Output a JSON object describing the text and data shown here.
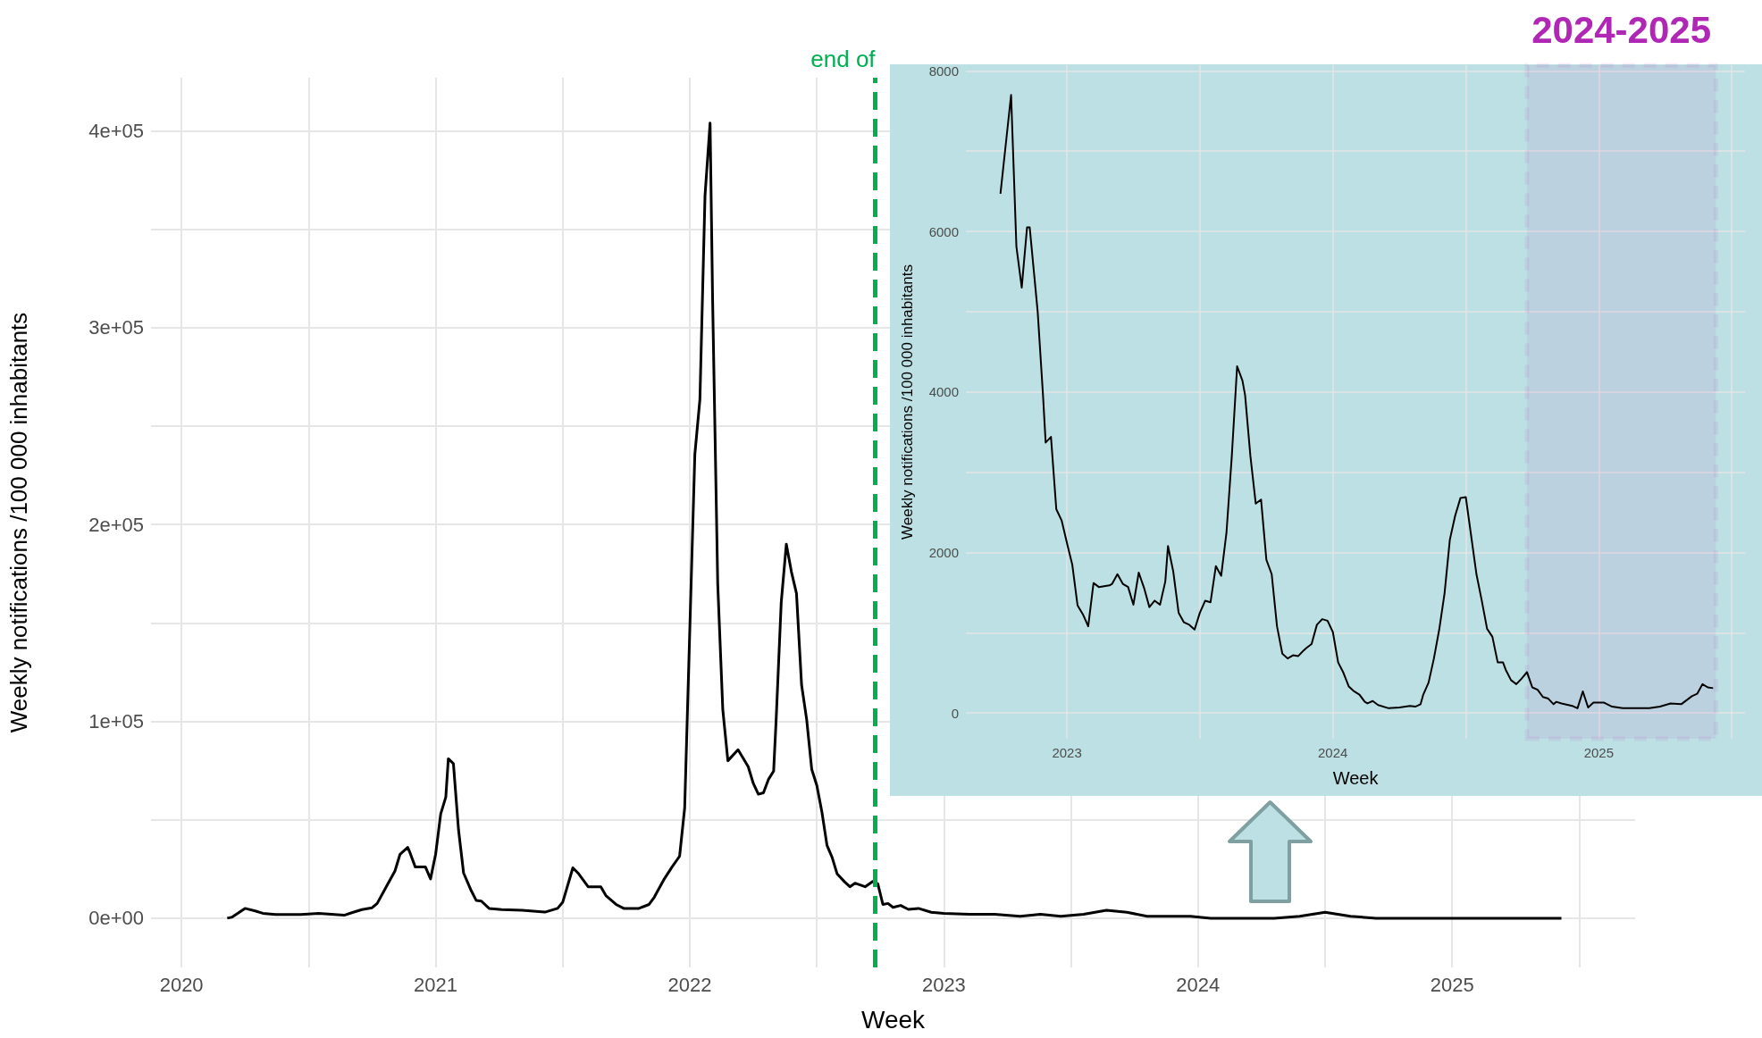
{
  "chart_data": [
    {
      "type": "line",
      "xlabel": "Week",
      "ylabel": "Weekly notifications /100 000 inhabitants",
      "color": "#000000",
      "grid": true,
      "line_style": "solid",
      "xlim": [
        2019.88,
        2025.72
      ],
      "xticks": [
        2020,
        {
          "value": 2020.5,
          "label": null
        },
        2021,
        {
          "value": 2021.5,
          "label": null
        },
        2022,
        {
          "value": 2022.5,
          "label": null
        },
        2023,
        {
          "value": 2023.5,
          "label": null
        },
        2024,
        {
          "value": 2024.5,
          "label": null
        },
        2025,
        {
          "value": 2025.5,
          "label": null
        }
      ],
      "ylim": [
        -25000,
        427000
      ],
      "yticks": [
        {
          "value": 0,
          "label": "0e+00"
        },
        {
          "value": 50000,
          "label": null
        },
        {
          "value": 100000,
          "label": "1e+05"
        },
        {
          "value": 150000,
          "label": null
        },
        {
          "value": 200000,
          "label": "2e+05"
        },
        {
          "value": 250000,
          "label": null
        },
        {
          "value": 300000,
          "label": "3e+05"
        },
        {
          "value": 350000,
          "label": null
        },
        {
          "value": 400000,
          "label": "4e+05"
        }
      ],
      "ref_lines": [
        {
          "axis": "x",
          "value": 2022.73,
          "label": "end of",
          "color": "#00b050",
          "line_style": "dashed"
        }
      ],
      "x": [
        2020.18,
        2020.2,
        2020.25,
        2020.29,
        2020.32,
        2020.37,
        2020.47,
        2020.54,
        2020.64,
        2020.67,
        2020.71,
        2020.75,
        2020.77,
        2020.81,
        2020.84,
        2020.86,
        2020.89,
        2020.9,
        2020.92,
        2020.96,
        2020.98,
        2021.0,
        2021.02,
        2021.04,
        2021.05,
        2021.07,
        2021.09,
        2021.11,
        2021.14,
        2021.16,
        2021.18,
        2021.21,
        2021.26,
        2021.34,
        2021.43,
        2021.48,
        2021.5,
        2021.54,
        2021.56,
        2021.6,
        2021.65,
        2021.67,
        2021.71,
        2021.74,
        2021.8,
        2021.84,
        2021.86,
        2021.9,
        2021.93,
        2021.96,
        2021.98,
        2022.02,
        2022.04,
        2022.06,
        2022.08,
        2022.09,
        2022.11,
        2022.13,
        2022.15,
        2022.19,
        2022.23,
        2022.25,
        2022.27,
        2022.29,
        2022.31,
        2022.33,
        2022.34,
        2022.36,
        2022.38,
        2022.4,
        2022.42,
        2022.44,
        2022.46,
        2022.48,
        2022.5,
        2022.52,
        2022.54,
        2022.56,
        2022.58,
        2022.61,
        2022.63,
        2022.65,
        2022.69,
        2022.72,
        2022.74,
        2022.76,
        2022.78,
        2022.8,
        2022.83,
        2022.86,
        2022.9,
        2022.95,
        2023.0,
        2023.1,
        2023.2,
        2023.3,
        2023.38,
        2023.46,
        2023.55,
        2023.64,
        2023.72,
        2023.8,
        2023.9,
        2023.97,
        2024.05,
        2024.15,
        2024.3,
        2024.4,
        2024.5,
        2024.6,
        2024.7,
        2024.8,
        2024.94,
        2025.0,
        2025.2,
        2025.35,
        2025.43
      ],
      "values": [
        0,
        600,
        5000,
        3700,
        2500,
        1900,
        1900,
        2500,
        1500,
        2800,
        4400,
        5300,
        7500,
        17000,
        24000,
        32500,
        36000,
        33000,
        26000,
        26000,
        20000,
        32500,
        53000,
        61500,
        81000,
        78500,
        45000,
        23000,
        14000,
        9000,
        8700,
        5000,
        4400,
        4000,
        3100,
        5000,
        8100,
        25600,
        23000,
        16000,
        16000,
        11500,
        7000,
        5000,
        5000,
        7000,
        10600,
        20000,
        26000,
        31500,
        56000,
        235600,
        263700,
        367000,
        404000,
        313700,
        170000,
        106000,
        80000,
        85600,
        77000,
        68500,
        63000,
        63700,
        70600,
        74700,
        101000,
        160600,
        190000,
        176000,
        165000,
        118500,
        101000,
        75600,
        67500,
        54000,
        37000,
        31000,
        22500,
        18400,
        16000,
        17800,
        16000,
        18700,
        17500,
        7000,
        7500,
        5500,
        6500,
        4500,
        5000,
        3000,
        2500,
        2000,
        2000,
        1000,
        2000,
        1000,
        2000,
        4000,
        3000,
        1000,
        1000,
        1000,
        0,
        0,
        0,
        1000,
        3000,
        1000,
        0,
        0,
        0,
        0,
        0,
        0,
        0
      ]
    },
    {
      "type": "line",
      "xlabel": "Week",
      "ylabel": "Weekly notifications /100 000 inhabitants",
      "color": "#000000",
      "grid": true,
      "line_style": "solid",
      "xlim": [
        2022.62,
        2025.55
      ],
      "xticks": [
        2023,
        {
          "value": 2023.5,
          "label": null
        },
        2024,
        {
          "value": 2024.5,
          "label": null
        },
        2025,
        {
          "value": 2025.5,
          "label": null
        }
      ],
      "ylim": [
        -320,
        8070
      ],
      "yticks": [
        0,
        {
          "value": 1000,
          "label": null
        },
        2000,
        {
          "value": 3000,
          "label": null
        },
        4000,
        {
          "value": 5000,
          "label": null
        },
        6000,
        {
          "value": 7000,
          "label": null
        },
        8000
      ],
      "bands": [
        {
          "axis": "x",
          "from": 2024.73,
          "to": 2025.44,
          "label": "2024-2025",
          "color": "#b127b5"
        }
      ],
      "x": [
        2022.75,
        2022.79,
        2022.81,
        2022.83,
        2022.85,
        2022.86,
        2022.89,
        2022.91,
        2022.92,
        2022.94,
        2022.96,
        2022.98,
        2023.0,
        2023.02,
        2023.04,
        2023.06,
        2023.08,
        2023.1,
        2023.12,
        2023.16,
        2023.17,
        2023.19,
        2023.21,
        2023.23,
        2023.25,
        2023.27,
        2023.29,
        2023.31,
        2023.33,
        2023.35,
        2023.37,
        2023.38,
        2023.4,
        2023.42,
        2023.44,
        2023.46,
        2023.48,
        2023.5,
        2023.52,
        2023.54,
        2023.56,
        2023.58,
        2023.6,
        2023.62,
        2023.64,
        2023.66,
        2023.67,
        2023.69,
        2023.71,
        2023.73,
        2023.75,
        2023.77,
        2023.79,
        2023.81,
        2023.83,
        2023.85,
        2023.87,
        2023.89,
        2023.9,
        2023.92,
        2023.94,
        2023.96,
        2023.98,
        2024.0,
        2024.02,
        2024.04,
        2024.06,
        2024.08,
        2024.1,
        2024.12,
        2024.13,
        2024.15,
        2024.17,
        2024.21,
        2024.25,
        2024.29,
        2024.31,
        2024.33,
        2024.34,
        2024.36,
        2024.38,
        2024.4,
        2024.42,
        2024.44,
        2024.46,
        2024.48,
        2024.5,
        2024.52,
        2024.54,
        2024.56,
        2024.58,
        2024.6,
        2024.62,
        2024.64,
        2024.65,
        2024.67,
        2024.69,
        2024.71,
        2024.73,
        2024.75,
        2024.77,
        2024.79,
        2024.81,
        2024.83,
        2024.84,
        2024.86,
        2024.9,
        2024.92,
        2024.94,
        2024.96,
        2024.98,
        2025.02,
        2025.05,
        2025.09,
        2025.13,
        2025.19,
        2025.23,
        2025.27,
        2025.31,
        2025.35,
        2025.37,
        2025.39,
        2025.41,
        2025.43
      ],
      "values": [
        6470,
        7700,
        5810,
        5300,
        6050,
        6050,
        5000,
        3960,
        3370,
        3440,
        2540,
        2400,
        2120,
        1850,
        1340,
        1230,
        1080,
        1620,
        1570,
        1590,
        1610,
        1730,
        1610,
        1570,
        1350,
        1750,
        1560,
        1320,
        1400,
        1350,
        1640,
        2080,
        1760,
        1250,
        1130,
        1100,
        1040,
        1250,
        1400,
        1380,
        1830,
        1710,
        2250,
        3200,
        4320,
        4140,
        3960,
        3200,
        2610,
        2660,
        1910,
        1730,
        1080,
        740,
        680,
        720,
        710,
        780,
        810,
        860,
        1100,
        1170,
        1150,
        1010,
        630,
        500,
        330,
        270,
        230,
        140,
        120,
        150,
        100,
        60,
        70,
        90,
        80,
        110,
        230,
        380,
        680,
        1040,
        1490,
        2160,
        2460,
        2680,
        2690,
        2210,
        1730,
        1400,
        1050,
        950,
        630,
        630,
        540,
        410,
        360,
        430,
        510,
        320,
        290,
        200,
        180,
        110,
        140,
        120,
        90,
        60,
        270,
        70,
        130,
        130,
        80,
        60,
        60,
        60,
        80,
        120,
        110,
        210,
        240,
        360,
        320,
        310
      ]
    }
  ]
}
